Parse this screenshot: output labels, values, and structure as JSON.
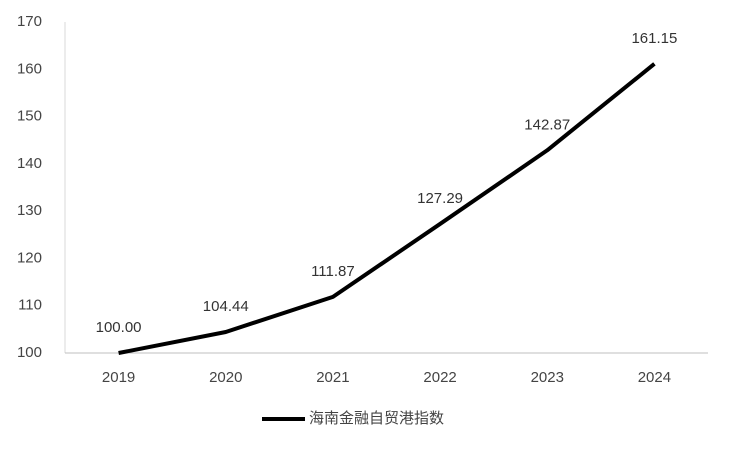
{
  "chart_data": {
    "type": "line",
    "categories": [
      "2019",
      "2020",
      "2021",
      "2022",
      "2023",
      "2024"
    ],
    "series": [
      {
        "name": "海南金融自贸港指数",
        "color": "#000000",
        "values": [
          100,
          104.44,
          111.87,
          127.29,
          142.87,
          161.15
        ],
        "value_labels": [
          "100.00",
          "104.44",
          "111.87",
          "127.29",
          "142.87",
          "161.15"
        ]
      }
    ],
    "ylim": [
      100,
      170
    ],
    "yticks": [
      100,
      110,
      120,
      130,
      140,
      150,
      160,
      170
    ],
    "grid": false,
    "legend": "bottom"
  }
}
